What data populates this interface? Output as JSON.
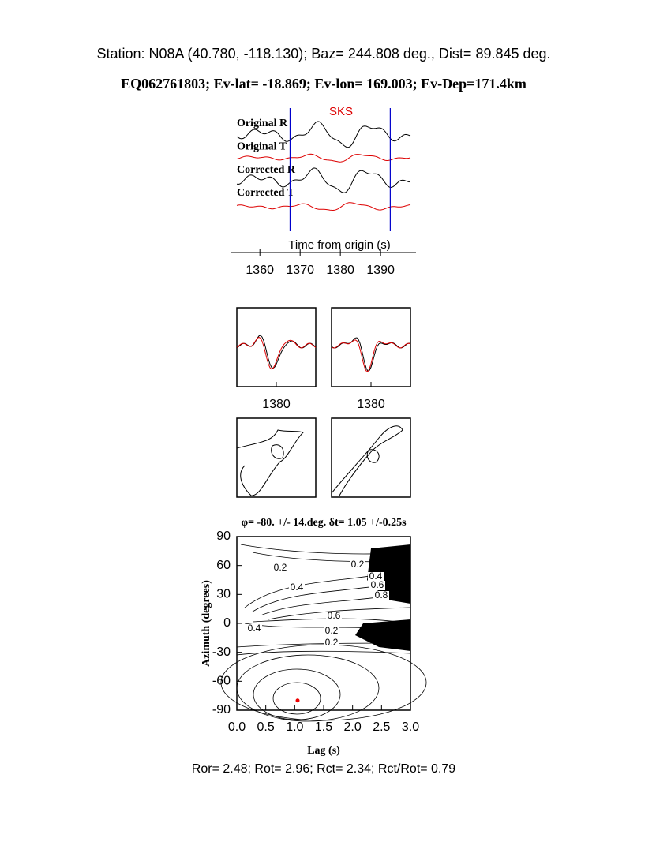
{
  "header": {
    "station": "Station: N08A (40.780, -118.130); Baz=  244.808 deg., Dist=   89.845 deg.",
    "event": "EQ062761803; Ev-lat= -18.869; Ev-lon= 169.003; Ev-Dep=171.4km"
  },
  "traces": {
    "phase": "SKS",
    "labels": [
      "Original R",
      "Original T",
      "Corrected R",
      "Corrected T"
    ],
    "xlabel": "Time from origin (s)",
    "xlim": [
      1352.7,
      1398.8
    ],
    "xticks": [
      1360,
      1370,
      1380,
      1390
    ],
    "window": [
      1367.5,
      1392.4
    ]
  },
  "waveform_ticks": [
    1380,
    1380
  ],
  "chart_data": {
    "type": "contour",
    "title": "φ= -80. +/- 14.deg. δt= 1.05 +/-0.25s",
    "xlabel": "Lag (s)",
    "ylabel": "Azimuth (degrees)",
    "xlim": [
      0,
      3
    ],
    "ylim": [
      -90,
      90
    ],
    "xticks": [
      {
        "value": 0,
        "label": "0.0"
      },
      {
        "value": 0.5,
        "label": "0.5"
      },
      {
        "value": 1,
        "label": "1.0"
      },
      {
        "value": 1.5,
        "label": "1.5"
      },
      {
        "value": 2,
        "label": "2.0"
      },
      {
        "value": 2.5,
        "label": "2.5"
      },
      {
        "value": 3,
        "label": "3.0"
      }
    ],
    "yticks": [
      -90,
      -60,
      -30,
      0,
      30,
      60,
      90
    ],
    "contour_labels": [
      0.2,
      0.2,
      0.4,
      0.6,
      0.8,
      0.4,
      0.6,
      0.4,
      0.2,
      0.2
    ],
    "best": {
      "x": 1.05,
      "y": -80
    }
  },
  "footer": "Ror= 2.48; Rot= 2.96; Rct= 2.34; Rct/Rot= 0.79"
}
